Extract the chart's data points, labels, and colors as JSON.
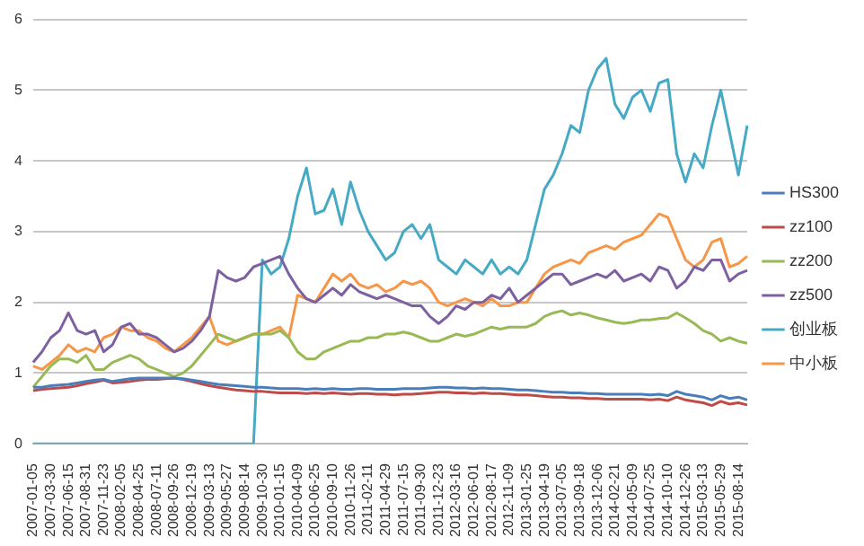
{
  "chart_data": {
    "type": "line",
    "categories": [
      "2007-01-05",
      null,
      "2007-03-30",
      null,
      "2007-06-15",
      null,
      "2007-08-31",
      null,
      "2007-11-23",
      null,
      "2008-02-05",
      null,
      "2008-04-25",
      null,
      "2008-07-11",
      null,
      "2008-09-26",
      null,
      "2008-12-19",
      null,
      "2009-03-13",
      null,
      "2009-05-27",
      null,
      "2009-08-14",
      null,
      "2009-10-30",
      null,
      "2010-01-15",
      null,
      "2010-04-09",
      null,
      "2010-06-25",
      null,
      "2010-09-10",
      null,
      "2010-11-26",
      null,
      "2011-02-11",
      null,
      "2011-04-29",
      null,
      "2011-07-15",
      null,
      "2011-09-30",
      null,
      "2011-12-23",
      null,
      "2012-03-16",
      null,
      "2012-06-01",
      null,
      "2012-08-17",
      null,
      "2012-11-09",
      null,
      "2013-01-25",
      null,
      "2013-04-19",
      null,
      "2013-07-05",
      null,
      "2013-09-18",
      null,
      "2013-12-06",
      null,
      "2014-02-21",
      null,
      "2014-05-09",
      null,
      "2014-07-25",
      null,
      "2014-10-10",
      null,
      "2014-12-26",
      null,
      "2015-03-13",
      null,
      "2015-05-29",
      null,
      "2015-08-14",
      null
    ],
    "series": [
      {
        "name": "HS300",
        "color": "#4a7ebb",
        "values": [
          0.8,
          0.8,
          0.82,
          0.83,
          0.84,
          0.86,
          0.88,
          0.9,
          0.91,
          0.88,
          0.9,
          0.92,
          0.93,
          0.93,
          0.93,
          0.93,
          0.93,
          0.92,
          0.9,
          0.88,
          0.86,
          0.84,
          0.83,
          0.82,
          0.81,
          0.8,
          0.8,
          0.79,
          0.78,
          0.78,
          0.78,
          0.77,
          0.78,
          0.77,
          0.78,
          0.77,
          0.77,
          0.78,
          0.78,
          0.77,
          0.77,
          0.77,
          0.78,
          0.78,
          0.78,
          0.79,
          0.8,
          0.8,
          0.79,
          0.79,
          0.78,
          0.79,
          0.78,
          0.78,
          0.77,
          0.76,
          0.76,
          0.75,
          0.74,
          0.73,
          0.73,
          0.72,
          0.72,
          0.71,
          0.71,
          0.7,
          0.7,
          0.7,
          0.7,
          0.7,
          0.69,
          0.7,
          0.68,
          0.74,
          0.7,
          0.68,
          0.66,
          0.62,
          0.68,
          0.64,
          0.66,
          0.62
        ]
      },
      {
        "name": "zz100",
        "color": "#be4b48",
        "values": [
          0.75,
          0.77,
          0.78,
          0.79,
          0.8,
          0.82,
          0.85,
          0.87,
          0.9,
          0.86,
          0.87,
          0.88,
          0.9,
          0.91,
          0.91,
          0.92,
          0.93,
          0.91,
          0.88,
          0.85,
          0.82,
          0.8,
          0.78,
          0.76,
          0.75,
          0.74,
          0.74,
          0.73,
          0.72,
          0.72,
          0.72,
          0.71,
          0.72,
          0.71,
          0.72,
          0.71,
          0.7,
          0.71,
          0.71,
          0.7,
          0.7,
          0.69,
          0.7,
          0.7,
          0.71,
          0.72,
          0.73,
          0.73,
          0.72,
          0.72,
          0.71,
          0.72,
          0.71,
          0.71,
          0.7,
          0.69,
          0.69,
          0.68,
          0.67,
          0.66,
          0.66,
          0.65,
          0.65,
          0.64,
          0.64,
          0.63,
          0.63,
          0.63,
          0.63,
          0.63,
          0.62,
          0.63,
          0.61,
          0.66,
          0.62,
          0.6,
          0.58,
          0.54,
          0.6,
          0.56,
          0.58,
          0.55
        ]
      },
      {
        "name": "zz200",
        "color": "#98b954",
        "values": [
          0.8,
          0.95,
          1.1,
          1.2,
          1.2,
          1.15,
          1.25,
          1.05,
          1.05,
          1.15,
          1.2,
          1.25,
          1.2,
          1.1,
          1.05,
          1.0,
          0.95,
          1.0,
          1.1,
          1.25,
          1.4,
          1.55,
          1.5,
          1.45,
          1.5,
          1.55,
          1.55,
          1.55,
          1.6,
          1.5,
          1.3,
          1.2,
          1.2,
          1.3,
          1.35,
          1.4,
          1.45,
          1.45,
          1.5,
          1.5,
          1.55,
          1.55,
          1.58,
          1.55,
          1.5,
          1.45,
          1.45,
          1.5,
          1.55,
          1.52,
          1.55,
          1.6,
          1.65,
          1.62,
          1.65,
          1.65,
          1.65,
          1.7,
          1.8,
          1.85,
          1.88,
          1.82,
          1.85,
          1.82,
          1.78,
          1.75,
          1.72,
          1.7,
          1.72,
          1.75,
          1.75,
          1.77,
          1.78,
          1.85,
          1.78,
          1.7,
          1.6,
          1.55,
          1.45,
          1.5,
          1.45,
          1.42
        ]
      },
      {
        "name": "zz500",
        "color": "#7d60a0",
        "values": [
          1.15,
          1.3,
          1.5,
          1.6,
          1.85,
          1.6,
          1.55,
          1.6,
          1.3,
          1.4,
          1.65,
          1.7,
          1.55,
          1.55,
          1.5,
          1.4,
          1.3,
          1.35,
          1.45,
          1.6,
          1.8,
          2.45,
          2.35,
          2.3,
          2.35,
          2.5,
          2.55,
          2.6,
          2.65,
          2.4,
          2.2,
          2.05,
          2.0,
          2.1,
          2.2,
          2.1,
          2.25,
          2.15,
          2.1,
          2.05,
          2.1,
          2.05,
          2.0,
          1.95,
          1.95,
          1.8,
          1.7,
          1.8,
          1.95,
          1.9,
          2.0,
          2.0,
          2.1,
          2.05,
          2.2,
          2.0,
          2.1,
          2.2,
          2.3,
          2.4,
          2.4,
          2.25,
          2.3,
          2.35,
          2.4,
          2.35,
          2.45,
          2.3,
          2.35,
          2.4,
          2.3,
          2.5,
          2.45,
          2.2,
          2.3,
          2.5,
          2.45,
          2.6,
          2.6,
          2.3,
          2.4,
          2.45
        ]
      },
      {
        "name": "创业板",
        "color": "#46aac5",
        "values": [
          0,
          0,
          0,
          0,
          0,
          0,
          0,
          0,
          0,
          0,
          0,
          0,
          0,
          0,
          0,
          0,
          0,
          0,
          0,
          0,
          0,
          0,
          0,
          0,
          0,
          0,
          2.6,
          2.4,
          2.5,
          2.9,
          3.5,
          3.9,
          3.25,
          3.3,
          3.6,
          3.1,
          3.7,
          3.3,
          3.0,
          2.8,
          2.6,
          2.7,
          3.0,
          3.1,
          2.9,
          3.1,
          2.6,
          2.5,
          2.4,
          2.6,
          2.5,
          2.4,
          2.6,
          2.4,
          2.5,
          2.4,
          2.6,
          3.1,
          3.6,
          3.8,
          4.1,
          4.5,
          4.4,
          5.0,
          5.3,
          5.45,
          4.8,
          4.6,
          4.9,
          5.0,
          4.7,
          5.1,
          5.15,
          4.1,
          3.7,
          4.1,
          3.9,
          4.5,
          5.0,
          4.4,
          3.8,
          4.5
        ]
      },
      {
        "name": "中小板",
        "color": "#f79646",
        "values": [
          1.1,
          1.05,
          1.15,
          1.25,
          1.4,
          1.3,
          1.35,
          1.3,
          1.5,
          1.55,
          1.65,
          1.6,
          1.6,
          1.5,
          1.45,
          1.35,
          1.3,
          1.4,
          1.5,
          1.65,
          1.8,
          1.45,
          1.4,
          1.45,
          1.5,
          1.55,
          1.55,
          1.6,
          1.65,
          1.5,
          2.1,
          2.05,
          2.0,
          2.2,
          2.4,
          2.3,
          2.4,
          2.25,
          2.2,
          2.25,
          2.15,
          2.2,
          2.3,
          2.25,
          2.3,
          2.2,
          2.0,
          1.95,
          2.0,
          2.05,
          2.0,
          1.95,
          2.05,
          1.95,
          1.95,
          2.0,
          2.0,
          2.2,
          2.4,
          2.5,
          2.55,
          2.6,
          2.55,
          2.7,
          2.75,
          2.8,
          2.75,
          2.85,
          2.9,
          2.95,
          3.1,
          3.25,
          3.2,
          2.9,
          2.6,
          2.5,
          2.6,
          2.85,
          2.9,
          2.5,
          2.55,
          2.65
        ]
      }
    ],
    "ylim": [
      0,
      6
    ],
    "yticks": [
      0,
      1,
      2,
      3,
      4,
      5,
      6
    ],
    "grid": "y",
    "legend": "right",
    "marker": "none"
  }
}
